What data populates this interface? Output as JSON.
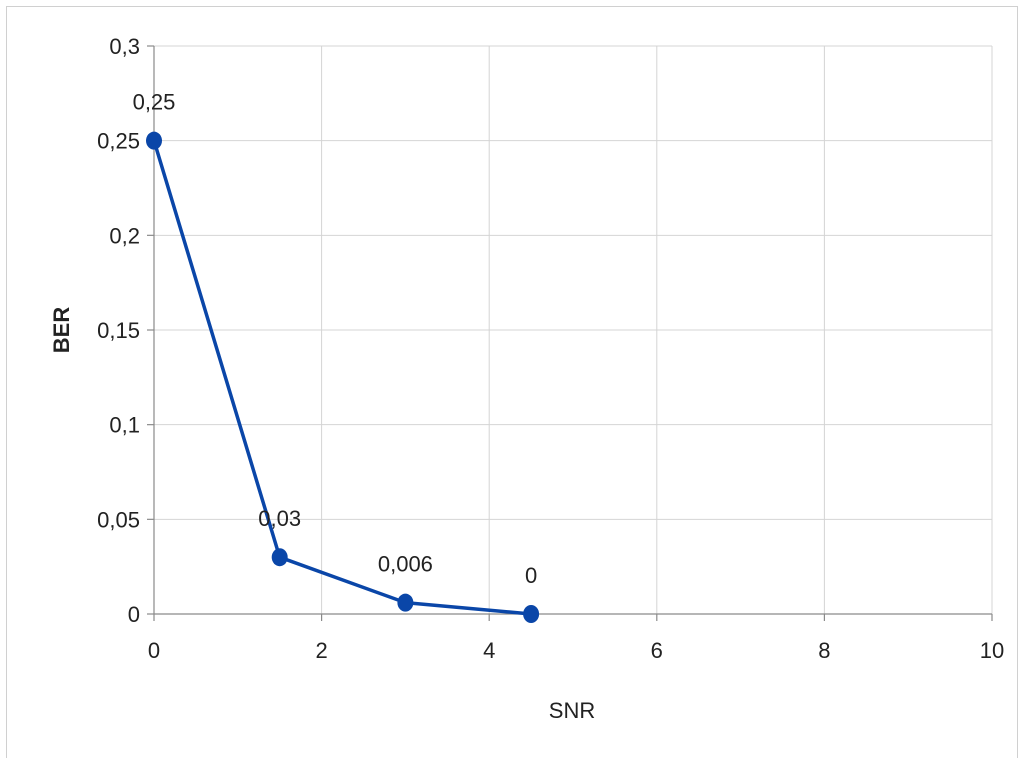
{
  "chart_data": {
    "type": "line",
    "title": "",
    "xlabel": "SNR",
    "ylabel": "BER",
    "xlim": [
      0,
      10
    ],
    "ylim": [
      0,
      0.3
    ],
    "x_ticks": [
      0,
      2,
      4,
      6,
      8,
      10
    ],
    "y_ticks": [
      0,
      0.05,
      0.1,
      0.15,
      0.2,
      0.25,
      0.3
    ],
    "x_tick_labels": [
      "0",
      "2",
      "4",
      "6",
      "8",
      "10"
    ],
    "y_tick_labels": [
      "0",
      "0,05",
      "0,1",
      "0,15",
      "0,2",
      "0,25",
      "0,3"
    ],
    "grid": true,
    "legend": "none",
    "series": [
      {
        "color": "#0a46a8",
        "points": [
          {
            "x": 0,
            "y": 0.25,
            "label": "0,25"
          },
          {
            "x": 1.5,
            "y": 0.03,
            "label": "0,03"
          },
          {
            "x": 3,
            "y": 0.006,
            "label": "0,006"
          },
          {
            "x": 4.5,
            "y": 0,
            "label": "0"
          }
        ]
      }
    ]
  }
}
